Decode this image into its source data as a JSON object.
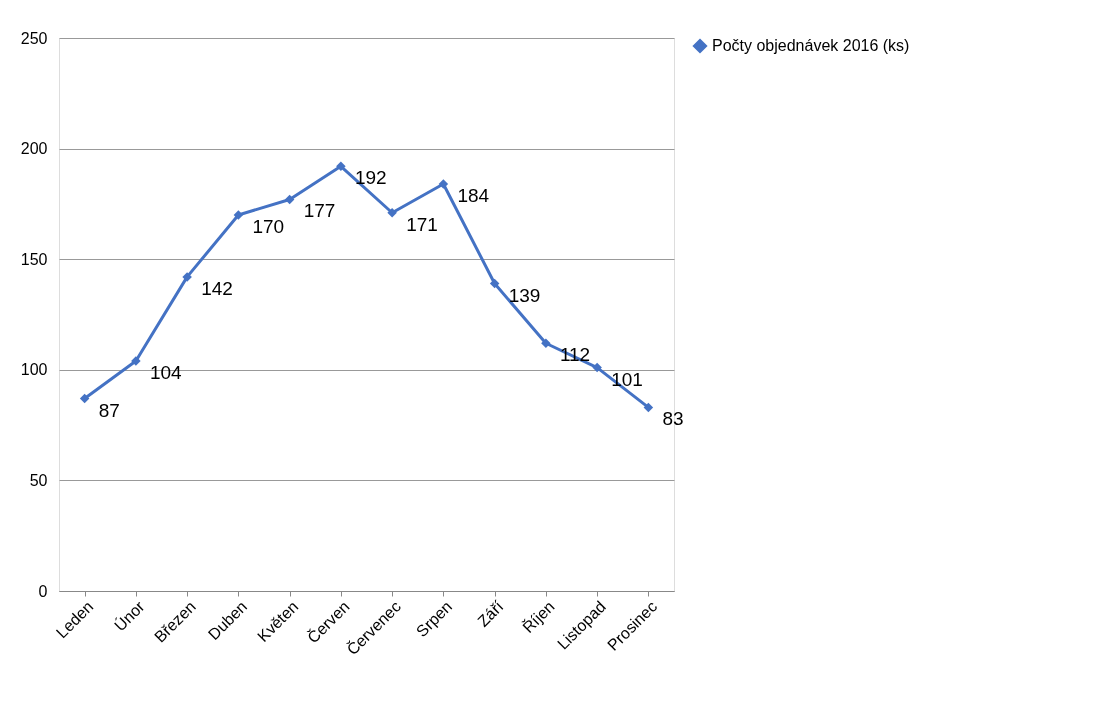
{
  "chart_data": {
    "type": "line",
    "categories": [
      "Leden",
      "Únor",
      "Březen",
      "Duben",
      "Květen",
      "Červen",
      "Červenec",
      "Srpen",
      "Září",
      "Říjen",
      "Listopad",
      "Prosinec"
    ],
    "series": [
      {
        "name": "Počty objednávek 2016 (ks)",
        "color": "#4472c4",
        "values": [
          87,
          104,
          142,
          170,
          177,
          192,
          171,
          184,
          139,
          112,
          101,
          83
        ]
      }
    ],
    "ylim": [
      0,
      250
    ],
    "yticks": [
      0,
      50,
      100,
      150,
      200,
      250
    ],
    "grid": "y",
    "legend": "right",
    "marker": "diamond",
    "line_style": "solid",
    "data_labels": true
  }
}
